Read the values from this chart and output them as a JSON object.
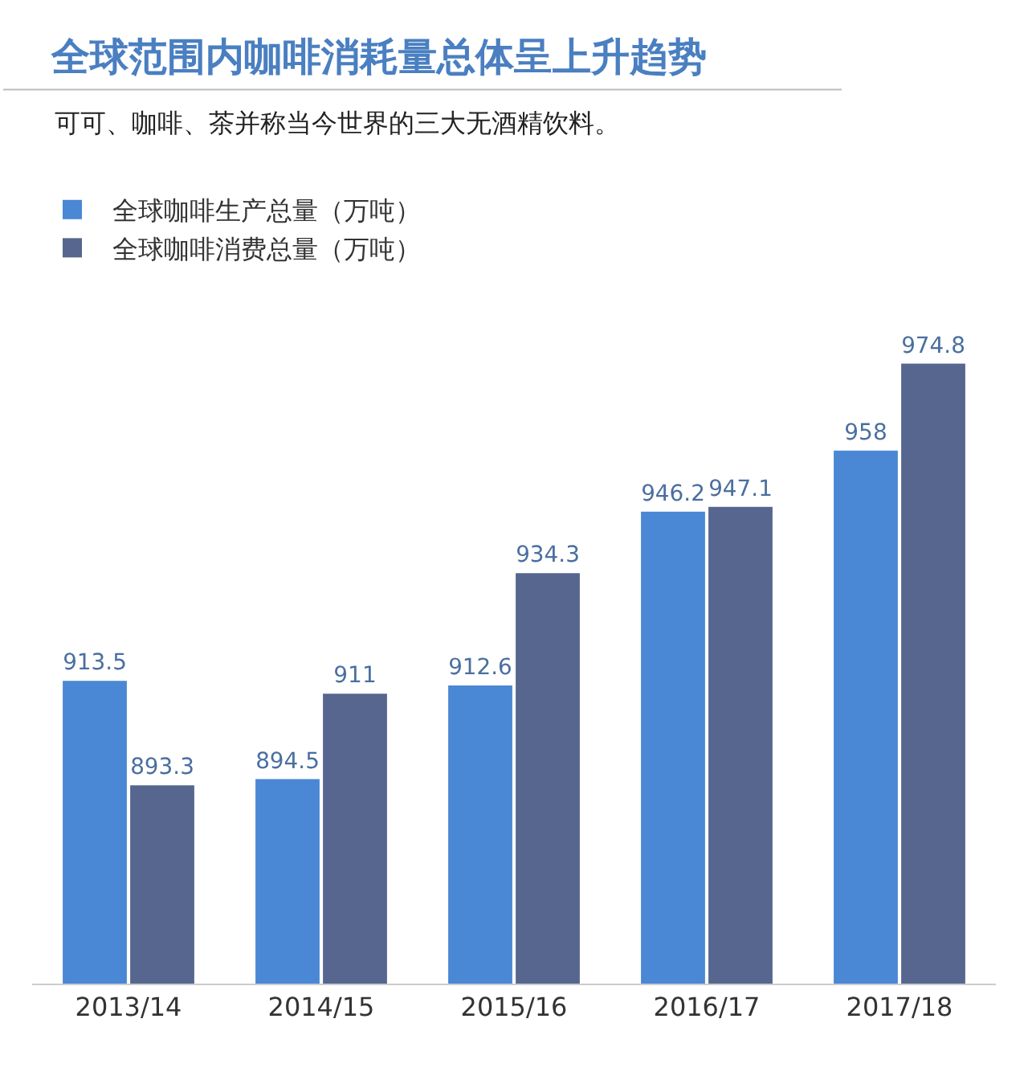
{
  "chart_data": {
    "type": "bar",
    "title": "全球范围内咖啡消耗量总体呈上升趋势",
    "subtitle": "可可、咖啡、茶并称当今世界的三大无酒精饮料。",
    "categories": [
      "2013/14",
      "2014/15",
      "2015/16",
      "2016/17",
      "2017/18"
    ],
    "series": [
      {
        "name": "全球咖啡生产总量（万吨）",
        "color": "#4a87d4",
        "values": [
          913.5,
          894.5,
          912.6,
          946.2,
          958
        ]
      },
      {
        "name": "全球咖啡消费总量（万吨）",
        "color": "#56668f",
        "values": [
          893.3,
          911,
          934.3,
          947.1,
          974.8
        ]
      }
    ],
    "data_labels": true,
    "legend": "top left",
    "tick_labels": "x"
  }
}
